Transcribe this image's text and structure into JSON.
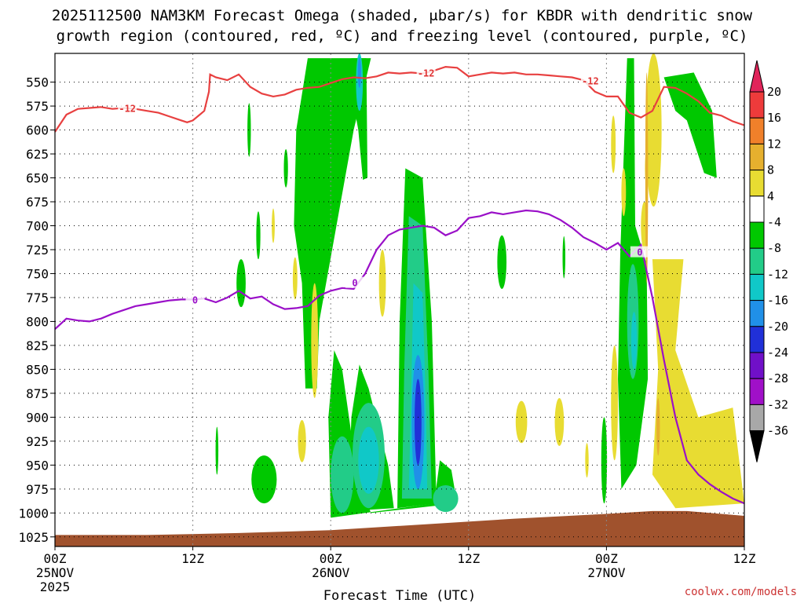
{
  "chart_data": {
    "type": "heatmap",
    "title": "2025112500 NAM3KM Forecast Omega (shaded, μbar/s) for KBDR with dendritic snow",
    "subtitle": "growth region (contoured, red, ºC) and freezing level (contoured, purple, ºC)",
    "xlabel": "Forecast Time (UTC)",
    "credit": "coolwx.com/models",
    "x_range_hours": [
      0,
      60
    ],
    "x_ticks": [
      {
        "hour": 0,
        "label": "00Z",
        "date": "25NOV",
        "year": "2025"
      },
      {
        "hour": 12,
        "label": "12Z",
        "date": "",
        "year": ""
      },
      {
        "hour": 24,
        "label": "00Z",
        "date": "26NOV",
        "year": ""
      },
      {
        "hour": 36,
        "label": "12Z",
        "date": "",
        "year": ""
      },
      {
        "hour": 48,
        "label": "00Z",
        "date": "27NOV",
        "year": ""
      },
      {
        "hour": 60,
        "label": "12Z",
        "date": "",
        "year": ""
      }
    ],
    "y_range_mb": [
      520,
      1035
    ],
    "y_ticks": [
      550,
      575,
      600,
      625,
      650,
      675,
      700,
      725,
      750,
      775,
      800,
      825,
      850,
      875,
      900,
      925,
      950,
      975,
      1000,
      1025
    ],
    "colorbar": {
      "levels": [
        20,
        16,
        12,
        8,
        4,
        -4,
        -8,
        -12,
        -16,
        -20,
        -24,
        -28,
        -32,
        -36
      ],
      "colors": [
        "#e0245a",
        "#ee3b3b",
        "#f0802a",
        "#e6b02e",
        "#e8dc32",
        "#ffffff",
        "#00c800",
        "#22cc88",
        "#10c8c8",
        "#2090e8",
        "#2030d8",
        "#7010c8",
        "#a010c8",
        "#a8a8a8",
        "#000000"
      ]
    },
    "dendritic_contour": {
      "label": "-12",
      "color": "#e84040",
      "points": [
        [
          0,
          602
        ],
        [
          1,
          584
        ],
        [
          2,
          578
        ],
        [
          3,
          577
        ],
        [
          4,
          576
        ],
        [
          5,
          578
        ],
        [
          6,
          577
        ],
        [
          7,
          578
        ],
        [
          8,
          580
        ],
        [
          9,
          582
        ],
        [
          10,
          586
        ],
        [
          11,
          590
        ],
        [
          11.5,
          592
        ],
        [
          12,
          590
        ],
        [
          13,
          580
        ],
        [
          13.4,
          560
        ],
        [
          13.5,
          542
        ],
        [
          14,
          545
        ],
        [
          15,
          548
        ],
        [
          16,
          542
        ],
        [
          17,
          555
        ],
        [
          18,
          562
        ],
        [
          19,
          565
        ],
        [
          20,
          563
        ],
        [
          21,
          558
        ],
        [
          22,
          556
        ],
        [
          23,
          555
        ],
        [
          24,
          551
        ],
        [
          25,
          547
        ],
        [
          26,
          545
        ],
        [
          27,
          546
        ],
        [
          28,
          544
        ],
        [
          29,
          540
        ],
        [
          30,
          541
        ],
        [
          31,
          540
        ],
        [
          32,
          541
        ],
        [
          33,
          538
        ],
        [
          34,
          534
        ],
        [
          35,
          535
        ],
        [
          36,
          544
        ],
        [
          37,
          542
        ],
        [
          38,
          540
        ],
        [
          39,
          541
        ],
        [
          40,
          540
        ],
        [
          41,
          542
        ],
        [
          42,
          542
        ],
        [
          43,
          543
        ],
        [
          44,
          544
        ],
        [
          45,
          545
        ],
        [
          46,
          548
        ],
        [
          47,
          560
        ],
        [
          48,
          565
        ],
        [
          49,
          565
        ],
        [
          50,
          582
        ],
        [
          51,
          587
        ],
        [
          52,
          580
        ],
        [
          53,
          555
        ],
        [
          54,
          556
        ],
        [
          55,
          562
        ],
        [
          56,
          570
        ],
        [
          57,
          582
        ],
        [
          58,
          585
        ],
        [
          59,
          591
        ],
        [
          60,
          595
        ]
      ],
      "label_positions": [
        [
          6.3,
          578
        ],
        [
          32.3,
          541
        ],
        [
          46.6,
          549
        ]
      ]
    },
    "freezing_contour": {
      "label": "0",
      "color": "#9a10c8",
      "points": [
        [
          0,
          808
        ],
        [
          1,
          797
        ],
        [
          2,
          799
        ],
        [
          3,
          800
        ],
        [
          4,
          797
        ],
        [
          5,
          792
        ],
        [
          6,
          788
        ],
        [
          7,
          784
        ],
        [
          8,
          782
        ],
        [
          9,
          780
        ],
        [
          10,
          778
        ],
        [
          11,
          777
        ],
        [
          12,
          777
        ],
        [
          13,
          776
        ],
        [
          14,
          780
        ],
        [
          15,
          775
        ],
        [
          16,
          768
        ],
        [
          17,
          776
        ],
        [
          18,
          774
        ],
        [
          19,
          782
        ],
        [
          20,
          787
        ],
        [
          21,
          786
        ],
        [
          22,
          784
        ],
        [
          23,
          773
        ],
        [
          24,
          768
        ],
        [
          25,
          765
        ],
        [
          26,
          766
        ],
        [
          27,
          750
        ],
        [
          28,
          725
        ],
        [
          29,
          710
        ],
        [
          30,
          704
        ],
        [
          31,
          702
        ],
        [
          32,
          700
        ],
        [
          33,
          702
        ],
        [
          34,
          710
        ],
        [
          35,
          705
        ],
        [
          36,
          692
        ],
        [
          37,
          690
        ],
        [
          38,
          686
        ],
        [
          39,
          688
        ],
        [
          40,
          686
        ],
        [
          41,
          684
        ],
        [
          42,
          685
        ],
        [
          43,
          688
        ],
        [
          44,
          694
        ],
        [
          45,
          702
        ],
        [
          46,
          712
        ],
        [
          47,
          718
        ],
        [
          48,
          725
        ],
        [
          49,
          718
        ],
        [
          50,
          732
        ],
        [
          51,
          720
        ],
        [
          52,
          775
        ],
        [
          53,
          840
        ],
        [
          54,
          900
        ],
        [
          55,
          945
        ],
        [
          56,
          960
        ],
        [
          57,
          970
        ],
        [
          58,
          978
        ],
        [
          59,
          985
        ],
        [
          60,
          990
        ]
      ],
      "label_positions": [
        [
          12.2,
          778
        ],
        [
          26.1,
          760
        ],
        [
          50.9,
          728
        ]
      ]
    }
  }
}
